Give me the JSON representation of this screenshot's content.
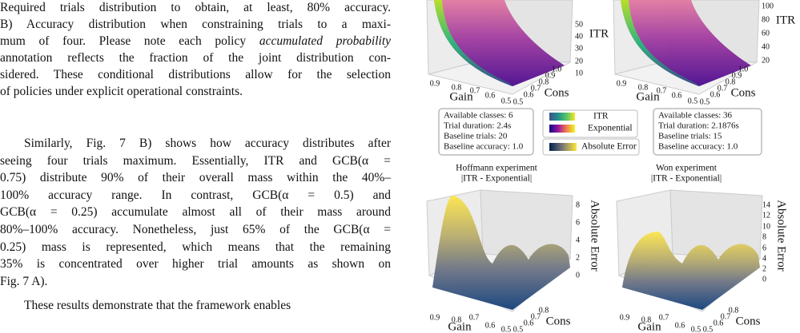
{
  "caption_lines": [
    "Required trials distribution to obtain, at least, 80% accuracy.",
    "B) Accuracy distribution when constraining trials to a maxi-",
    {
      "text": "mum of four. Please note each policy",
      "emphasis": "accumulated probability"
    },
    "annotation reflects the fraction of the joint distribution con-",
    "sidered. These conditional distributions allow for the selection",
    "of policies under explicit operational constraints."
  ],
  "paragraphs": [
    [
      "Similarly, Fig. 7 B) shows how accuracy distributes after",
      "seeing four trials maximum. Essentially, ITR and GCB(α =",
      "0.75) distribute 90% of their overall mass within the 40%–",
      "100% accuracy range. In contrast, GCB(α = 0.5) and",
      "GCB(α = 0.25) accumulate almost all of their mass around",
      "80%–100% accuracy. Nonetheless, just 65% of the GCB(α =",
      "0.25) mass is represented, which means that the remaining",
      "35% is concentrated over higher trial amounts as shown on",
      "Fig. 7 A)."
    ],
    [
      "These results demonstrate that the framework enables"
    ]
  ],
  "figure": {
    "top_plots": [
      {
        "z_label": "ITR",
        "z_ticks": [
          "50",
          "40",
          "30",
          "20",
          "10"
        ],
        "gain_label": "Gain",
        "gain_ticks": [
          "0.9",
          "0.8",
          "0.7",
          "0.6",
          "0.5"
        ],
        "cons_label": "Cons",
        "cons_ticks": [
          "0.5",
          "0.6",
          "0.7",
          "0.8",
          "0.9",
          "1.0"
        ]
      },
      {
        "z_label": "ITR",
        "z_ticks": [
          "100",
          "80",
          "60",
          "40",
          "20"
        ],
        "gain_label": "Gain",
        "gain_ticks": [
          "0.9",
          "0.8",
          "0.7",
          "0.6",
          "0.5"
        ],
        "cons_label": "Cons",
        "cons_ticks": [
          "0.5",
          "0.6",
          "0.7",
          "0.8",
          "0.9",
          "1.0"
        ]
      }
    ],
    "info_boxes": [
      [
        "Available classes: 6",
        "Trial duration: 2.4s",
        "Baseline trials: 20",
        "Baseline accuracy: 1.0"
      ],
      [
        "Available classes: 36",
        "Trial duration: 2.1876s",
        "Baseline trials: 15",
        "Baseline accuracy: 1.0"
      ]
    ],
    "legend": [
      "ITR",
      "Exponential",
      "Absolute Error"
    ],
    "bottom_plots": [
      {
        "title": [
          "Hoffmann experiment",
          "|ITR - Exponential|"
        ],
        "z_label": "Absolute Error",
        "z_ticks": [
          "8",
          "6",
          "4",
          "2",
          "0"
        ],
        "gain_label": "Gain",
        "gain_ticks": [
          "0.9",
          "0.8",
          "0.7",
          "0.6",
          "0.5"
        ],
        "cons_label": "Cons",
        "cons_ticks": [
          "0.5",
          "0.6",
          "0.7",
          "0.8"
        ]
      },
      {
        "title": [
          "Won experiment",
          "|ITR - Exponential|"
        ],
        "z_label": "Absolute Error",
        "z_ticks": [
          "14",
          "12",
          "10",
          "8",
          "6",
          "4",
          "2",
          "0"
        ],
        "gain_label": "Gain",
        "gain_ticks": [
          "0.9",
          "0.8",
          "0.7",
          "0.6",
          "0.5"
        ],
        "cons_label": "Cons",
        "cons_ticks": [
          "0.5",
          "0.6",
          "0.7",
          "0.8"
        ]
      }
    ]
  }
}
